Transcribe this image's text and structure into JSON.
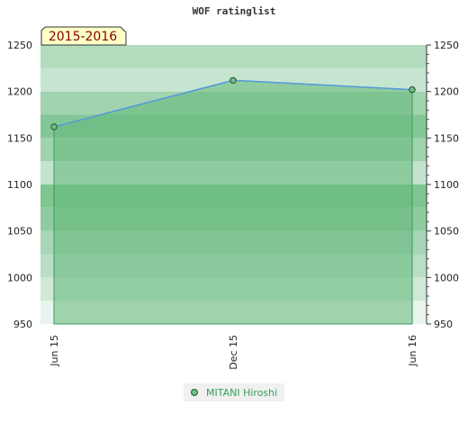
{
  "chart_data": {
    "type": "area",
    "title": "WOF ratinglist",
    "season_label": "2015-2016",
    "x": [
      "Jun 15",
      "Dec 15",
      "Jun 16"
    ],
    "series": [
      {
        "name": "MITANI Hiroshi",
        "values": [
          1162,
          1212,
          1202
        ]
      }
    ],
    "ylim": [
      950,
      1250
    ],
    "y_ticks": [
      950,
      1000,
      1050,
      1100,
      1150,
      1200,
      1250
    ],
    "y_tick_labels": [
      "950",
      "1000",
      "1050",
      "1100",
      "1150",
      "1200",
      "1250"
    ],
    "y_axis_sides": [
      "left",
      "right"
    ],
    "grid": true,
    "legend_position": "bottom-center",
    "colors": {
      "line": "#5599dd",
      "area": "#63b878",
      "marker": "#2d8a4e",
      "legend_text": "#3aa05a",
      "season_bg": "#ffffc8",
      "season_text": "#8b0000"
    }
  }
}
